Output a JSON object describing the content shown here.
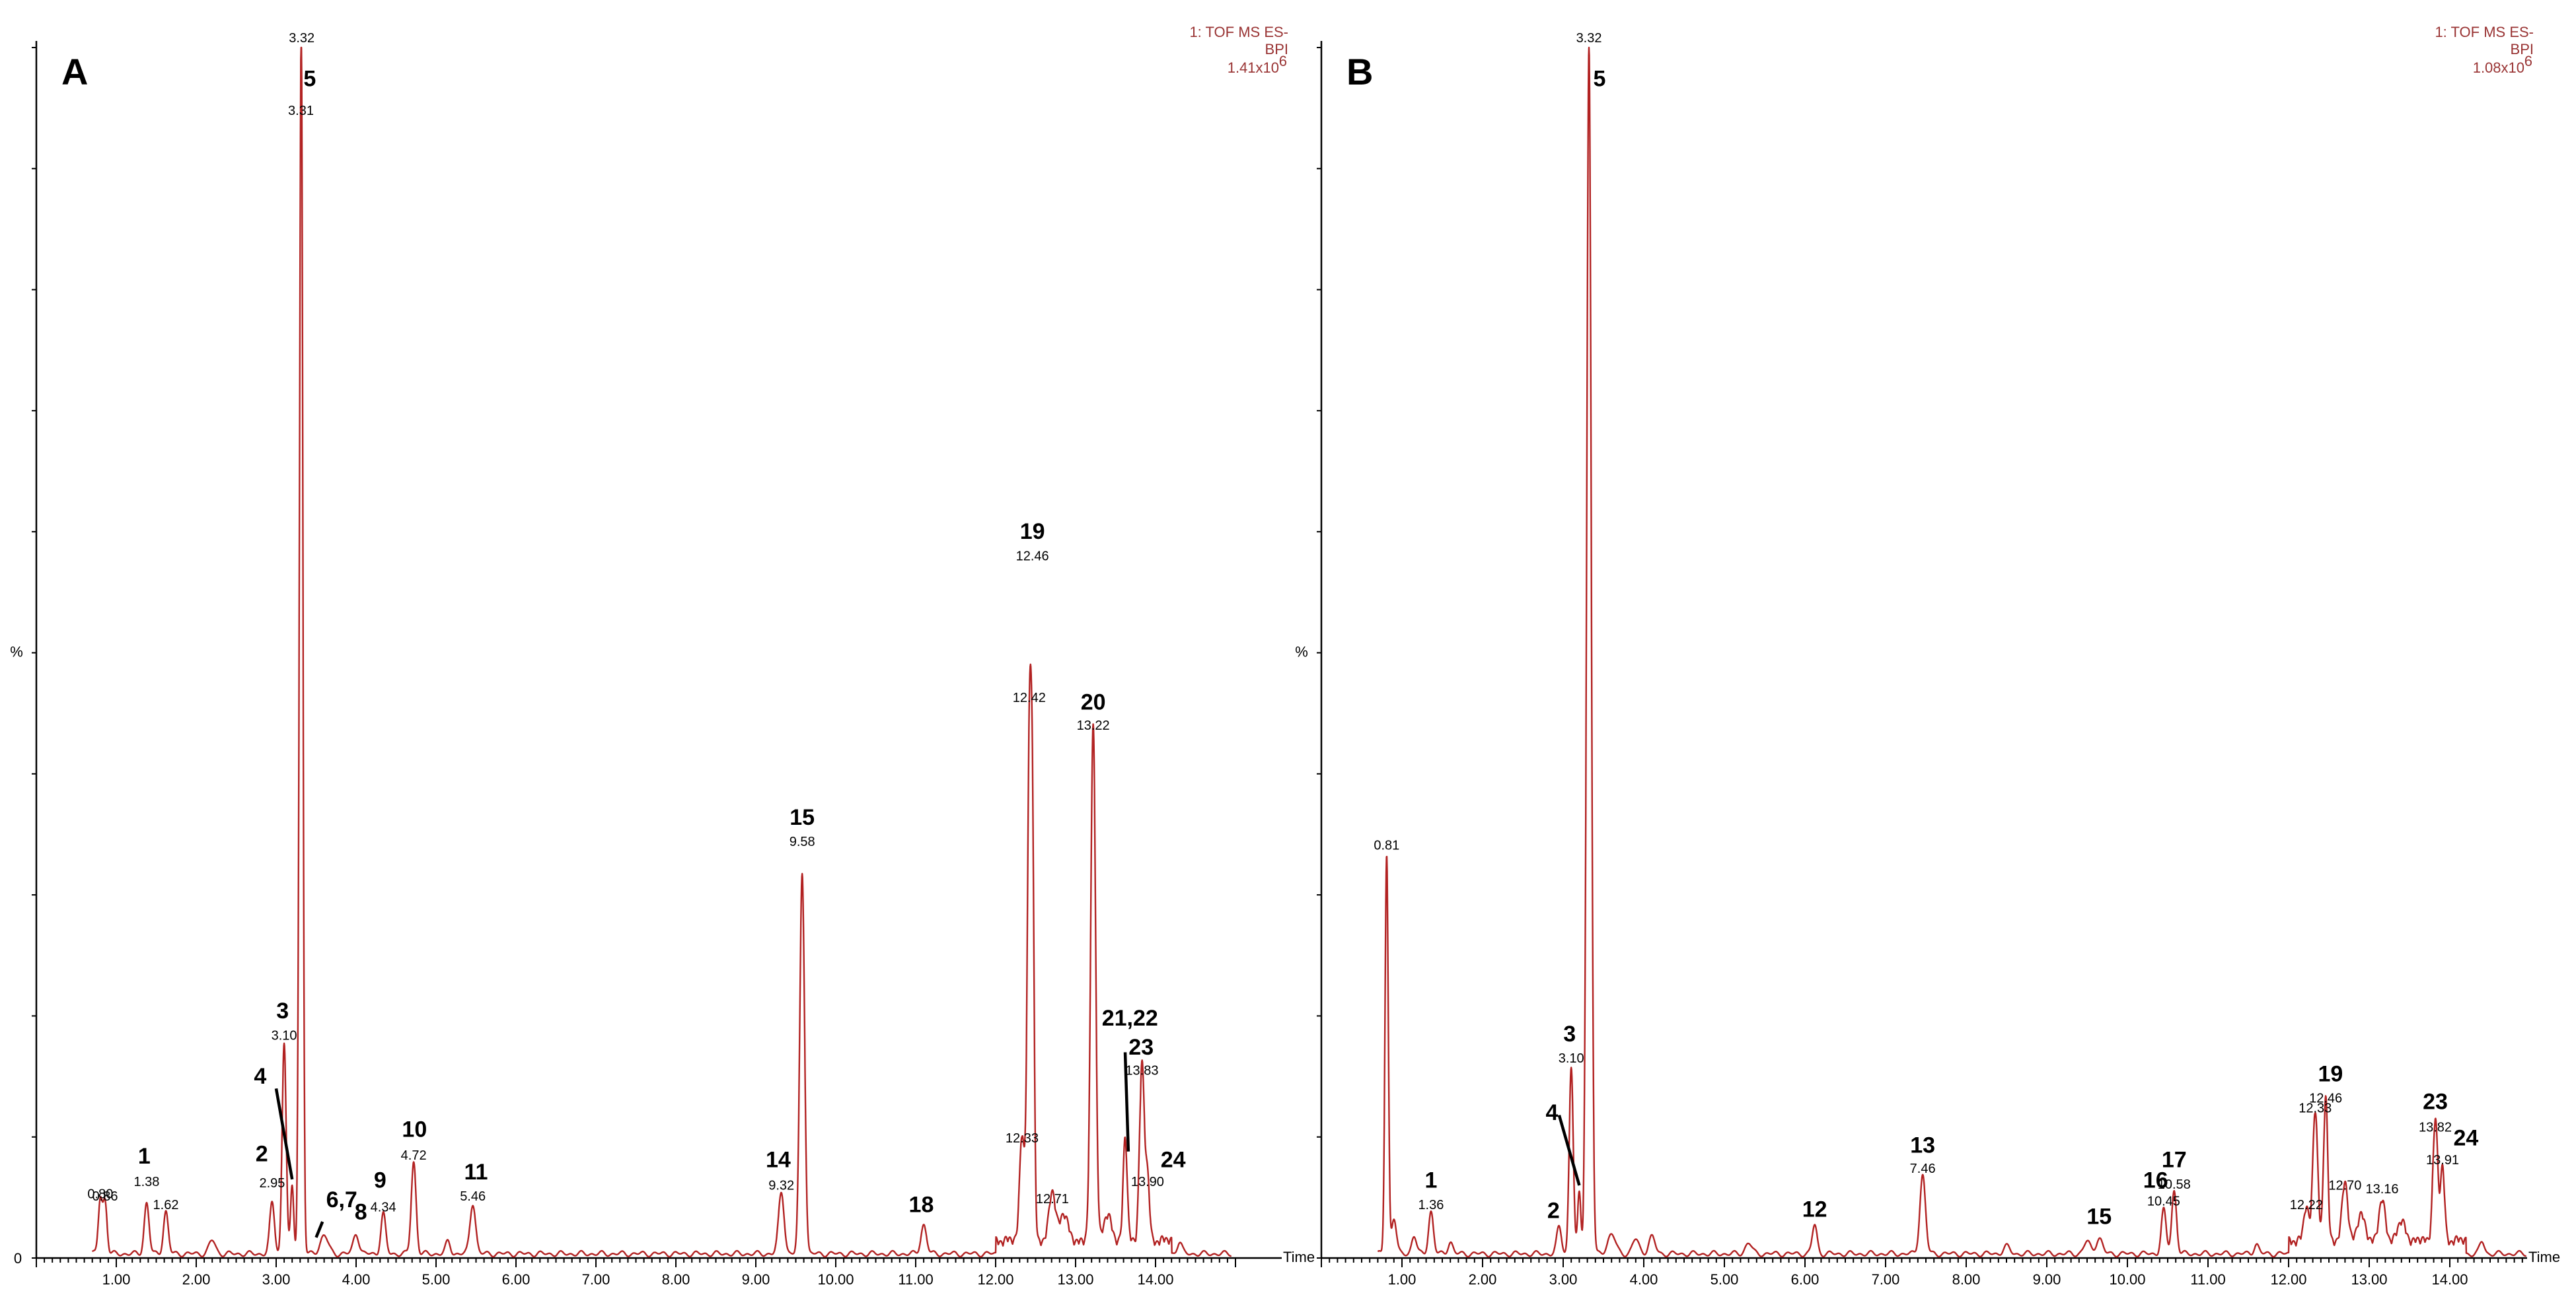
{
  "chart_data": [
    {
      "panel_label": "A",
      "type": "line",
      "xlabel": "Time",
      "ylabel": "%",
      "xlim": [
        0.0,
        15.0
      ],
      "ylim": [
        0,
        100
      ],
      "grid": false,
      "info": [
        "1: TOF MS ES-",
        "BPI",
        "1.41x10",
        "6"
      ],
      "ticks": [
        {
          "x": 0,
          "label": "0"
        },
        {
          "x": 1,
          "label": "1.00"
        },
        {
          "x": 2,
          "label": "2.00"
        },
        {
          "x": 3,
          "label": "3.00"
        },
        {
          "x": 4,
          "label": "4.00"
        },
        {
          "x": 5,
          "label": "5.00"
        },
        {
          "x": 6,
          "label": "6.00"
        },
        {
          "x": 7,
          "label": "7.00"
        },
        {
          "x": 8,
          "label": "8.00"
        },
        {
          "x": 9,
          "label": "9.00"
        },
        {
          "x": 10,
          "label": "10.00"
        },
        {
          "x": 11,
          "label": "11.00"
        },
        {
          "x": 12,
          "label": "12.00"
        },
        {
          "x": 13,
          "label": "13.00"
        },
        {
          "x": 14,
          "label": "14.00"
        }
      ],
      "peaks": [
        {
          "rt": 0.8,
          "h": 4.5,
          "w": 0.025
        },
        {
          "rt": 0.86,
          "h": 4.3,
          "w": 0.025
        },
        {
          "rt": 1.38,
          "h": 4.2,
          "w": 0.03
        },
        {
          "rt": 1.62,
          "h": 3.5,
          "w": 0.03
        },
        {
          "rt": 2.2,
          "h": 1.1,
          "w": 0.04
        },
        {
          "rt": 2.95,
          "h": 4.2,
          "w": 0.03
        },
        {
          "rt": 3.1,
          "h": 17.5,
          "w": 0.025
        },
        {
          "rt": 3.2,
          "h": 5.5,
          "w": 0.02
        },
        {
          "rt": 3.31,
          "h": 83.0,
          "w": 0.022
        },
        {
          "rt": 3.32,
          "h": 22.0,
          "w": 0.015
        },
        {
          "rt": 3.6,
          "h": 1.5,
          "w": 0.05
        },
        {
          "rt": 4.0,
          "h": 1.7,
          "w": 0.035
        },
        {
          "rt": 4.34,
          "h": 3.3,
          "w": 0.03
        },
        {
          "rt": 4.72,
          "h": 7.6,
          "w": 0.03
        },
        {
          "rt": 5.15,
          "h": 1.0,
          "w": 0.03
        },
        {
          "rt": 5.46,
          "h": 4.2,
          "w": 0.035
        },
        {
          "rt": 9.32,
          "h": 5.1,
          "w": 0.035
        },
        {
          "rt": 9.58,
          "h": 31.5,
          "w": 0.03
        },
        {
          "rt": 11.1,
          "h": 2.4,
          "w": 0.035
        },
        {
          "rt": 12.33,
          "h": 9.0,
          "w": 0.03
        },
        {
          "rt": 12.42,
          "h": 38.0,
          "w": 0.025
        },
        {
          "rt": 12.46,
          "h": 30.0,
          "w": 0.022
        },
        {
          "rt": 12.71,
          "h": 4.0,
          "w": 0.04
        },
        {
          "rt": 12.85,
          "h": 2.2,
          "w": 0.05
        },
        {
          "rt": 13.22,
          "h": 43.0,
          "w": 0.03
        },
        {
          "rt": 13.4,
          "h": 2.0,
          "w": 0.05
        },
        {
          "rt": 13.62,
          "h": 8.5,
          "w": 0.025
        },
        {
          "rt": 13.83,
          "h": 14.5,
          "w": 0.03
        },
        {
          "rt": 13.9,
          "h": 5.0,
          "w": 0.025
        },
        {
          "rt": 14.3,
          "h": 1.0,
          "w": 0.03
        }
      ],
      "rt_labels": [
        {
          "rt": 0.8,
          "h": 4.5,
          "text": "0.80"
        },
        {
          "rt": 0.86,
          "h": 4.3,
          "text": "0.86"
        },
        {
          "rt": 1.38,
          "h": 5.5,
          "text": "1.38"
        },
        {
          "rt": 1.62,
          "h": 3.6,
          "text": "1.62"
        },
        {
          "rt": 2.95,
          "h": 5.4,
          "text": "2.95"
        },
        {
          "rt": 3.1,
          "h": 17.6,
          "text": "3.10"
        },
        {
          "rt": 3.31,
          "h": 94.0,
          "text": "3.31"
        },
        {
          "rt": 3.32,
          "h": 100.0,
          "text": "3.32"
        },
        {
          "rt": 4.34,
          "h": 3.4,
          "text": "4.34"
        },
        {
          "rt": 4.72,
          "h": 7.7,
          "text": "4.72"
        },
        {
          "rt": 5.46,
          "h": 4.3,
          "text": "5.46"
        },
        {
          "rt": 9.32,
          "h": 5.2,
          "text": "9.32"
        },
        {
          "rt": 9.58,
          "h": 33.6,
          "text": "9.58"
        },
        {
          "rt": 12.33,
          "h": 9.1,
          "text": "12.33"
        },
        {
          "rt": 12.42,
          "h": 45.5,
          "text": "12.42"
        },
        {
          "rt": 12.46,
          "h": 57.2,
          "text": "12.46"
        },
        {
          "rt": 12.71,
          "h": 4.1,
          "text": "12.71"
        },
        {
          "rt": 13.22,
          "h": 43.2,
          "text": "13.22"
        },
        {
          "rt": 13.83,
          "h": 14.7,
          "text": "13.83"
        },
        {
          "rt": 13.9,
          "h": 5.5,
          "text": "13.90"
        }
      ],
      "peak_labels": [
        {
          "rt": 1.35,
          "h": 7.8,
          "text": "1"
        },
        {
          "rt": 2.82,
          "h": 8.0,
          "text": "2"
        },
        {
          "rt": 3.08,
          "h": 19.8,
          "text": "3"
        },
        {
          "rt": 2.8,
          "h": 14.4,
          "text": "4"
        },
        {
          "rt": 3.42,
          "h": 96.8,
          "text": "5"
        },
        {
          "rt": 3.82,
          "h": 4.2,
          "text": "6,7"
        },
        {
          "rt": 4.06,
          "h": 3.2,
          "text": "8"
        },
        {
          "rt": 4.3,
          "h": 5.8,
          "text": "9"
        },
        {
          "rt": 4.73,
          "h": 10.0,
          "text": "10"
        },
        {
          "rt": 5.5,
          "h": 6.5,
          "text": "11"
        },
        {
          "rt": 9.28,
          "h": 7.5,
          "text": "14"
        },
        {
          "rt": 9.58,
          "h": 35.8,
          "text": "15"
        },
        {
          "rt": 11.07,
          "h": 3.8,
          "text": "18"
        },
        {
          "rt": 12.46,
          "h": 59.4,
          "text": "19"
        },
        {
          "rt": 13.22,
          "h": 45.3,
          "text": "20"
        },
        {
          "rt": 13.68,
          "h": 19.2,
          "text": "21,22"
        },
        {
          "rt": 13.82,
          "h": 16.8,
          "text": "23"
        },
        {
          "rt": 14.22,
          "h": 7.5,
          "text": "24"
        }
      ],
      "callouts": [
        {
          "from": [
            3.0,
            14.0
          ],
          "to": [
            3.2,
            6.5
          ]
        },
        {
          "from": [
            3.58,
            3.0
          ],
          "to": [
            3.5,
            1.7
          ]
        },
        {
          "from": [
            13.62,
            17.0
          ],
          "to": [
            13.66,
            8.8
          ]
        }
      ]
    },
    {
      "panel_label": "B",
      "type": "line",
      "xlabel": "Time",
      "ylabel": "%",
      "xlim": [
        0.0,
        15.0
      ],
      "ylim": [
        0,
        100
      ],
      "grid": false,
      "info": [
        "1: TOF MS ES-",
        "BPI",
        "1.08x10",
        "6"
      ],
      "ticks": [
        {
          "x": 1,
          "label": "1.00"
        },
        {
          "x": 2,
          "label": "2.00"
        },
        {
          "x": 3,
          "label": "3.00"
        },
        {
          "x": 4,
          "label": "4.00"
        },
        {
          "x": 5,
          "label": "5.00"
        },
        {
          "x": 6,
          "label": "6.00"
        },
        {
          "x": 7,
          "label": "7.00"
        },
        {
          "x": 8,
          "label": "8.00"
        },
        {
          "x": 9,
          "label": "9.00"
        },
        {
          "x": 10,
          "label": "10.00"
        },
        {
          "x": 11,
          "label": "11.00"
        },
        {
          "x": 12,
          "label": "12.00"
        },
        {
          "x": 13,
          "label": "13.00"
        },
        {
          "x": 14,
          "label": "14.00"
        }
      ],
      "peaks": [
        {
          "rt": 0.81,
          "h": 33.0,
          "w": 0.02
        },
        {
          "rt": 0.9,
          "h": 3.0,
          "w": 0.03
        },
        {
          "rt": 1.15,
          "h": 1.5,
          "w": 0.03
        },
        {
          "rt": 1.36,
          "h": 3.5,
          "w": 0.03
        },
        {
          "rt": 1.6,
          "h": 1.0,
          "w": 0.03
        },
        {
          "rt": 2.95,
          "h": 2.2,
          "w": 0.03
        },
        {
          "rt": 3.1,
          "h": 15.5,
          "w": 0.025
        },
        {
          "rt": 3.2,
          "h": 5.0,
          "w": 0.02
        },
        {
          "rt": 3.32,
          "h": 100.0,
          "w": 0.028
        },
        {
          "rt": 3.6,
          "h": 1.6,
          "w": 0.05
        },
        {
          "rt": 3.9,
          "h": 1.2,
          "w": 0.04
        },
        {
          "rt": 4.1,
          "h": 1.4,
          "w": 0.04
        },
        {
          "rt": 5.3,
          "h": 0.9,
          "w": 0.04
        },
        {
          "rt": 6.12,
          "h": 2.4,
          "w": 0.03
        },
        {
          "rt": 7.46,
          "h": 6.5,
          "w": 0.035
        },
        {
          "rt": 8.5,
          "h": 0.6,
          "w": 0.04
        },
        {
          "rt": 9.5,
          "h": 1.0,
          "w": 0.04
        },
        {
          "rt": 9.65,
          "h": 1.3,
          "w": 0.04
        },
        {
          "rt": 10.45,
          "h": 3.6,
          "w": 0.03
        },
        {
          "rt": 10.58,
          "h": 5.2,
          "w": 0.03
        },
        {
          "rt": 11.6,
          "h": 0.8,
          "w": 0.03
        },
        {
          "rt": 12.22,
          "h": 2.8,
          "w": 0.03
        },
        {
          "rt": 12.33,
          "h": 11.0,
          "w": 0.03
        },
        {
          "rt": 12.46,
          "h": 12.0,
          "w": 0.025
        },
        {
          "rt": 12.7,
          "h": 4.8,
          "w": 0.035
        },
        {
          "rt": 12.9,
          "h": 2.0,
          "w": 0.05
        },
        {
          "rt": 13.16,
          "h": 3.2,
          "w": 0.04
        },
        {
          "rt": 13.4,
          "h": 1.5,
          "w": 0.05
        },
        {
          "rt": 13.82,
          "h": 10.0,
          "w": 0.03
        },
        {
          "rt": 13.91,
          "h": 6.0,
          "w": 0.025
        },
        {
          "rt": 14.4,
          "h": 1.0,
          "w": 0.03
        }
      ],
      "rt_labels": [
        {
          "rt": 0.81,
          "h": 33.3,
          "text": "0.81"
        },
        {
          "rt": 1.36,
          "h": 3.6,
          "text": "1.36"
        },
        {
          "rt": 3.1,
          "h": 15.7,
          "text": "3.10"
        },
        {
          "rt": 3.32,
          "h": 100.0,
          "text": "3.32"
        },
        {
          "rt": 7.46,
          "h": 6.6,
          "text": "7.46"
        },
        {
          "rt": 10.45,
          "h": 3.9,
          "text": "10.45"
        },
        {
          "rt": 10.58,
          "h": 5.3,
          "text": "10.58"
        },
        {
          "rt": 12.22,
          "h": 3.6,
          "text": "12.22"
        },
        {
          "rt": 12.33,
          "h": 11.6,
          "text": "12.33"
        },
        {
          "rt": 12.46,
          "h": 12.4,
          "text": "12.46"
        },
        {
          "rt": 12.7,
          "h": 5.2,
          "text": "12.70"
        },
        {
          "rt": 13.16,
          "h": 4.9,
          "text": "13.16"
        },
        {
          "rt": 13.82,
          "h": 10.0,
          "text": "13.82"
        },
        {
          "rt": 13.91,
          "h": 7.3,
          "text": "13.91"
        }
      ],
      "peak_labels": [
        {
          "rt": 1.36,
          "h": 5.8,
          "text": "1"
        },
        {
          "rt": 2.88,
          "h": 3.3,
          "text": "2"
        },
        {
          "rt": 3.08,
          "h": 17.9,
          "text": "3"
        },
        {
          "rt": 2.86,
          "h": 11.4,
          "text": "4"
        },
        {
          "rt": 3.45,
          "h": 96.8,
          "text": "5"
        },
        {
          "rt": 6.12,
          "h": 3.4,
          "text": "12"
        },
        {
          "rt": 7.46,
          "h": 8.7,
          "text": "13"
        },
        {
          "rt": 9.65,
          "h": 2.8,
          "text": "15"
        },
        {
          "rt": 10.35,
          "h": 5.8,
          "text": "16"
        },
        {
          "rt": 10.58,
          "h": 7.5,
          "text": "17"
        },
        {
          "rt": 12.52,
          "h": 14.6,
          "text": "19"
        },
        {
          "rt": 13.82,
          "h": 12.3,
          "text": "23"
        },
        {
          "rt": 14.2,
          "h": 9.3,
          "text": "24"
        }
      ],
      "callouts": [
        {
          "from": [
            2.95,
            11.8
          ],
          "to": [
            3.2,
            6.0
          ]
        }
      ]
    }
  ]
}
